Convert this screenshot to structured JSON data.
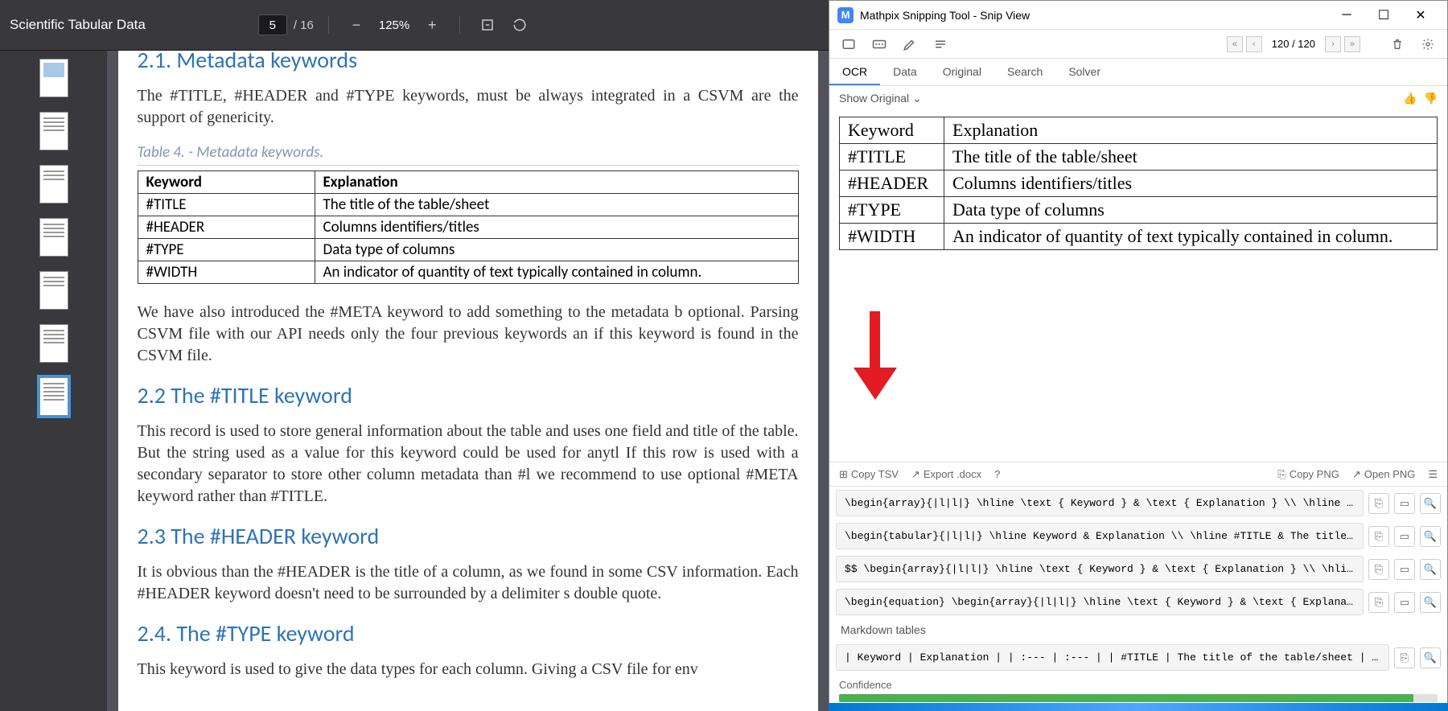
{
  "pdf": {
    "title": "Scientific Tabular Data",
    "current_page": "5",
    "total_pages": "/ 16",
    "zoom": "125%",
    "sections": {
      "s21_title": "2.1. Metadata keywords",
      "s21_p1": "The #TITLE, #HEADER and #TYPE keywords, must be always integrated in a CSVM are the support of genericity.",
      "table4_caption": "Table 4. - Metadata keywords.",
      "table4": {
        "h1": "Keyword",
        "h2": "Explanation",
        "r1c1": "#TITLE",
        "r1c2": "The title of the table/sheet",
        "r2c1": "#HEADER",
        "r2c2": "Columns identifiers/titles",
        "r3c1": "#TYPE",
        "r3c2": "Data type of columns",
        "r4c1": "#WIDTH",
        "r4c2": "An indicator of quantity of text typically contained in column."
      },
      "s21_p2": "We have also introduced the #META keyword to add something to the metadata b optional. Parsing CSVM file with our API needs only the four previous keywords an if this keyword is found in the CSVM file.",
      "s22_title": "2.2 The #TITLE keyword",
      "s22_p1": "This record is used to store general information about the table and uses one field and title of the table. But the string used as a value for this keyword could be used for anytl If this row is used with a secondary separator to store other column metadata than #l we recommend to use optional #META keyword rather than #TITLE.",
      "s23_title": "2.3 The #HEADER keyword",
      "s23_p1": "It is obvious than the #HEADER is the title of a column, as we found in some CSV information. Each #HEADER keyword doesn't need to be surrounded by a delimiter s double quote.",
      "s24_title": "2.4. The #TYPE keyword",
      "s24_p1": "This keyword is used to give the data types for each column. Giving a CSV file for env"
    }
  },
  "mathpix": {
    "window_title": "Mathpix Snipping Tool - Snip View",
    "page_counter": "120 / 120",
    "tabs": {
      "ocr": "OCR",
      "data": "Data",
      "original": "Original",
      "search": "Search",
      "solver": "Solver"
    },
    "show_original": "Show Original",
    "ocr_table": {
      "r1c1": "Keyword",
      "r1c2": "Explanation",
      "r2c1": "#TITLE",
      "r2c2": "The title of the table/sheet",
      "r3c1": "#HEADER",
      "r3c2": "Columns identifiers/titles",
      "r4c1": "#TYPE",
      "r4c2": "Data type of columns",
      "r5c1": "#WIDTH",
      "r5c2": "An indicator of quantity of text typically contained in column."
    },
    "export": {
      "copy_tsv": "Copy TSV",
      "export_docx": "Export .docx",
      "copy_png": "Copy PNG",
      "open_png": "Open PNG"
    },
    "code": {
      "c1": "\\begin{array}{|l|l|} \\hline \\text { Keyword } & \\text { Explanation } \\\\ \\hline \\text { #TIT",
      "c2": "\\begin{tabular}{|l|l|} \\hline Keyword & Explanation \\\\ \\hline #TITLE & The title of the tabl",
      "c3": "$$  \\begin{array}{|l|l|} \\hline \\text { Keyword } & \\text { Explanation } \\\\ \\hline \\text {",
      "c4": "\\begin{equation}  \\begin{array}{|l|l|} \\hline \\text { Keyword } & \\text { Explanation } \\\\ \\",
      "md_label": "Markdown tables",
      "c5": "| Keyword | Explanation | | :--- | :--- | | #TITLE | The title of the table/sheet | | #HEADER | C"
    },
    "confidence_label": "Confidence",
    "confidence_pct": 96
  }
}
